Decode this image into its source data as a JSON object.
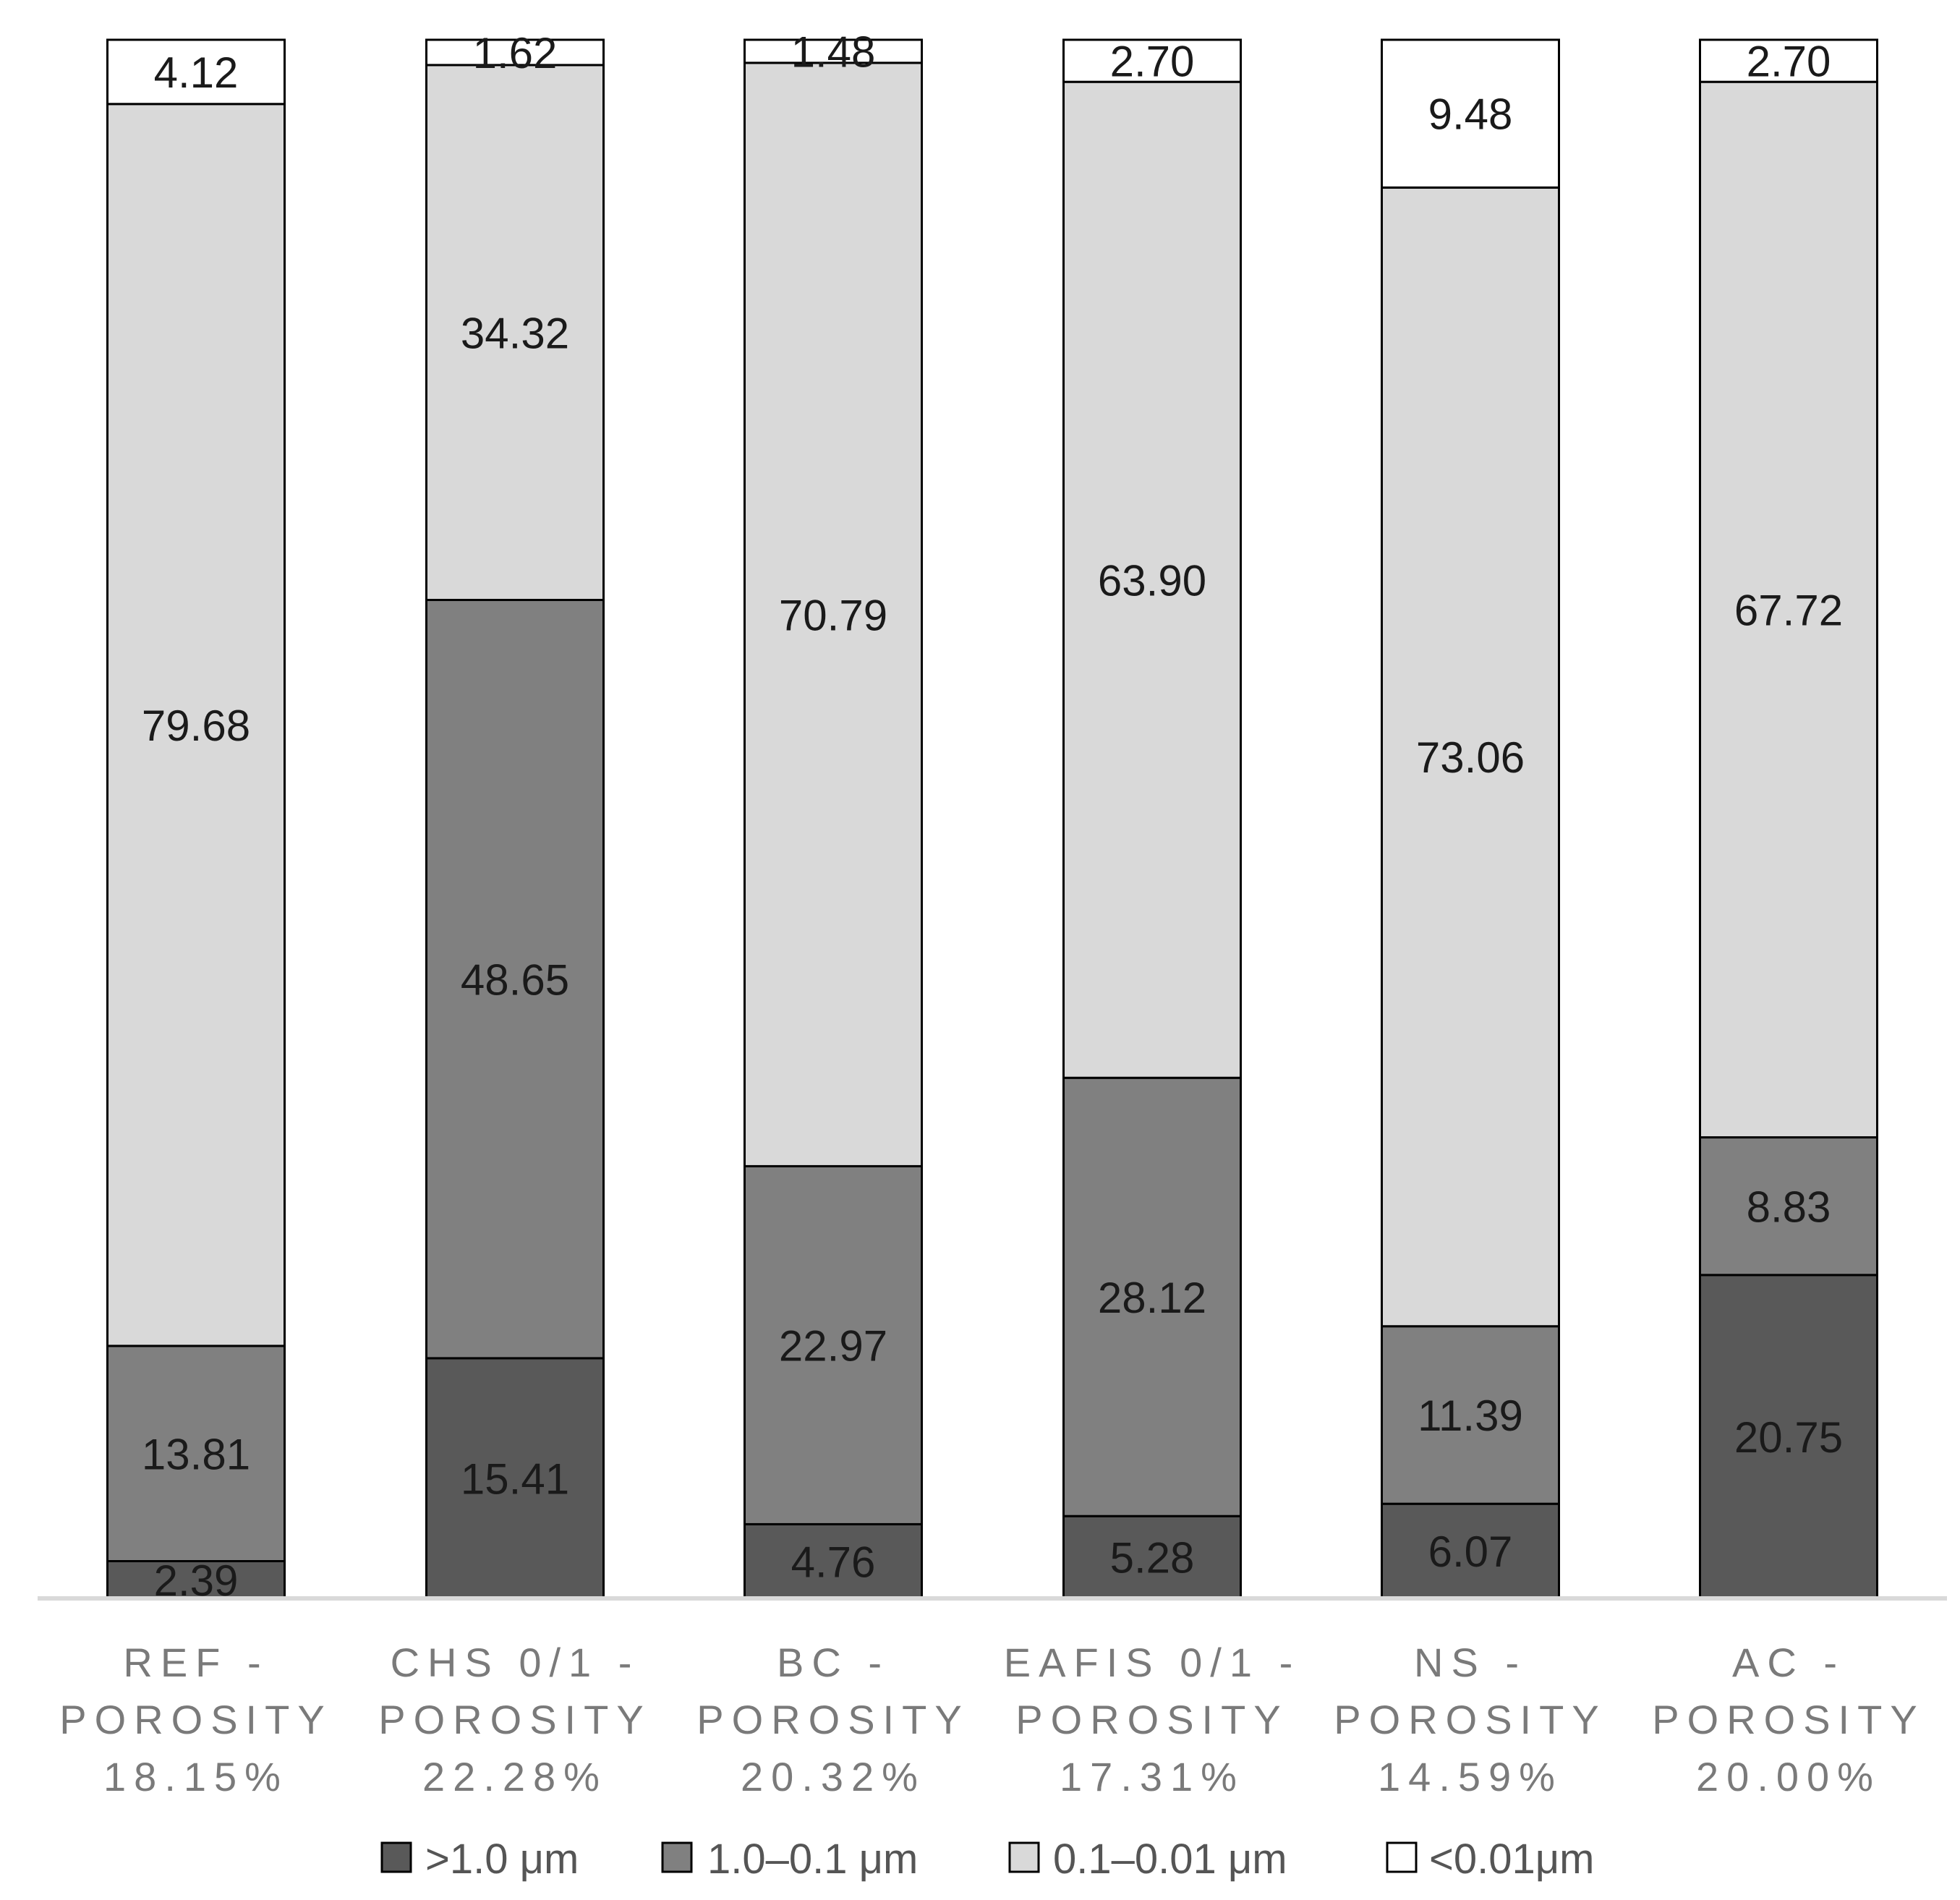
{
  "chart_data": {
    "type": "bar",
    "stacked": true,
    "normalized_percent": true,
    "title": "",
    "xlabel": "",
    "ylabel": "",
    "ylim": [
      0,
      100
    ],
    "grid": false,
    "legend_position": "bottom",
    "categories": [
      [
        "REF -",
        "POROSITY",
        "18.15%"
      ],
      [
        "CHS 0/1 -",
        "POROSITY",
        "22.28%"
      ],
      [
        "BC -",
        "POROSITY",
        "20.32%"
      ],
      [
        "EAFIS 0/1 -",
        "POROSITY",
        "17.31%"
      ],
      [
        "NS -",
        "POROSITY",
        "14.59%"
      ],
      [
        "AC -",
        "POROSITY",
        "20.00%"
      ]
    ],
    "series": [
      {
        "name": ">1.0 μm",
        "color": "#595959",
        "values": [
          2.39,
          15.41,
          4.76,
          5.28,
          6.07,
          20.75
        ],
        "labels": [
          "2.39",
          "15.41",
          "4.76",
          "5.28",
          "6.07",
          "20.75"
        ]
      },
      {
        "name": "1.0–0.1 μm",
        "color": "#808080",
        "values": [
          13.81,
          48.65,
          22.97,
          28.12,
          11.39,
          8.83
        ],
        "labels": [
          "13.81",
          "48.65",
          "22.97",
          "28.12",
          "11.39",
          "8.83"
        ]
      },
      {
        "name": "0.1–0.01 μm",
        "color": "#d9d9d9",
        "values": [
          79.68,
          34.32,
          70.79,
          63.9,
          73.06,
          67.72
        ],
        "labels": [
          "79.68",
          "34.32",
          "70.79",
          "63.90",
          "73.06",
          "67.72"
        ]
      },
      {
        "name": "<0.01μm",
        "color": "#ffffff",
        "values": [
          4.12,
          1.62,
          1.48,
          2.7,
          9.48,
          2.7
        ],
        "labels": [
          "4.12",
          "1.62",
          "1.48",
          "2.70",
          "9.48",
          "2.70"
        ]
      }
    ]
  }
}
